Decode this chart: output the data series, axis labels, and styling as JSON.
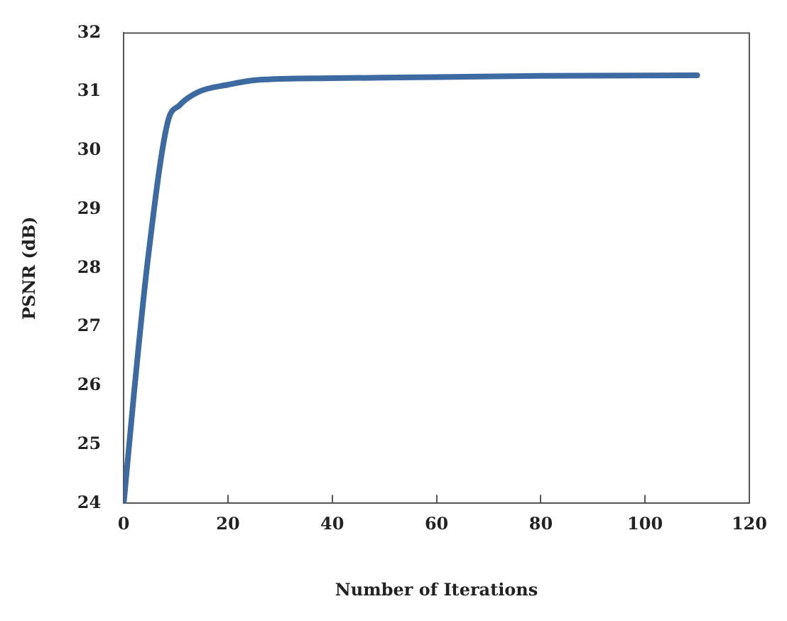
{
  "chart_data": {
    "type": "line",
    "xlabel": "Number of Iterations",
    "ylabel": "PSNR (dB)",
    "x": [
      0,
      2,
      4.7,
      8.4,
      10.7,
      14.4,
      20,
      25.6,
      40,
      60,
      80,
      110
    ],
    "series": [
      {
        "color": "#3d6aa0",
        "values": [
          24,
          25.9,
          28.2,
          30.47,
          30.77,
          31,
          31.12,
          31.2,
          31.23,
          31.25,
          31.27,
          31.28
        ]
      }
    ],
    "xlim": [
      0,
      120
    ],
    "xticks": [
      0,
      20,
      40,
      60,
      80,
      100,
      120
    ],
    "ylim": [
      24,
      32
    ],
    "yticks": [
      24,
      25,
      26,
      27,
      28,
      29,
      30,
      31,
      32
    ],
    "grid": false,
    "legend": false,
    "marker": "none",
    "line_style": "solid"
  }
}
